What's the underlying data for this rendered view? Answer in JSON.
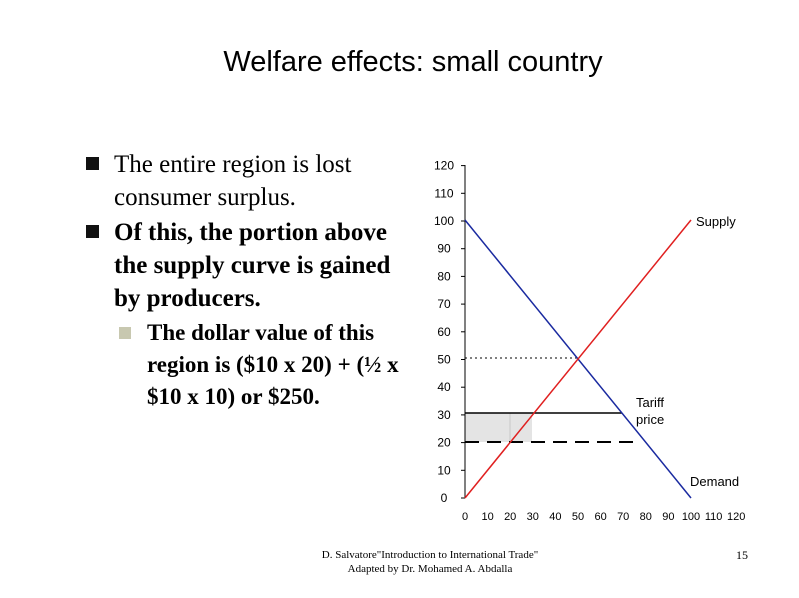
{
  "slide": {
    "title": "Welfare effects: small country",
    "bullets": [
      "The entire region is lost consumer surplus.",
      "Of this, the portion above the supply curve is gained by producers.",
      "The dollar value of this region is ($10 x 20) + (½ x $10 x 10) or $250."
    ],
    "footer_line1": "D. Salvatore\"Introduction to International Trade\"",
    "footer_line2": "Adapted by Dr. Mohamed A. Abdalla",
    "page_number": "15"
  },
  "diagram": {
    "y_ticks": [
      "0",
      "10",
      "20",
      "30",
      "40",
      "50",
      "60",
      "70",
      "80",
      "90",
      "100",
      "110",
      "120"
    ],
    "x_ticks": [
      "0",
      "10",
      "20",
      "30",
      "40",
      "50",
      "60",
      "70",
      "80",
      "90",
      "100",
      "110",
      "120"
    ],
    "labels": {
      "supply": "Supply",
      "demand": "Demand",
      "tariff_line1": "Tariff",
      "tariff_line2": "price"
    },
    "colors": {
      "supply": "#e02020",
      "demand": "#1a2aa0",
      "shade": "#e4e4e4"
    }
  }
}
